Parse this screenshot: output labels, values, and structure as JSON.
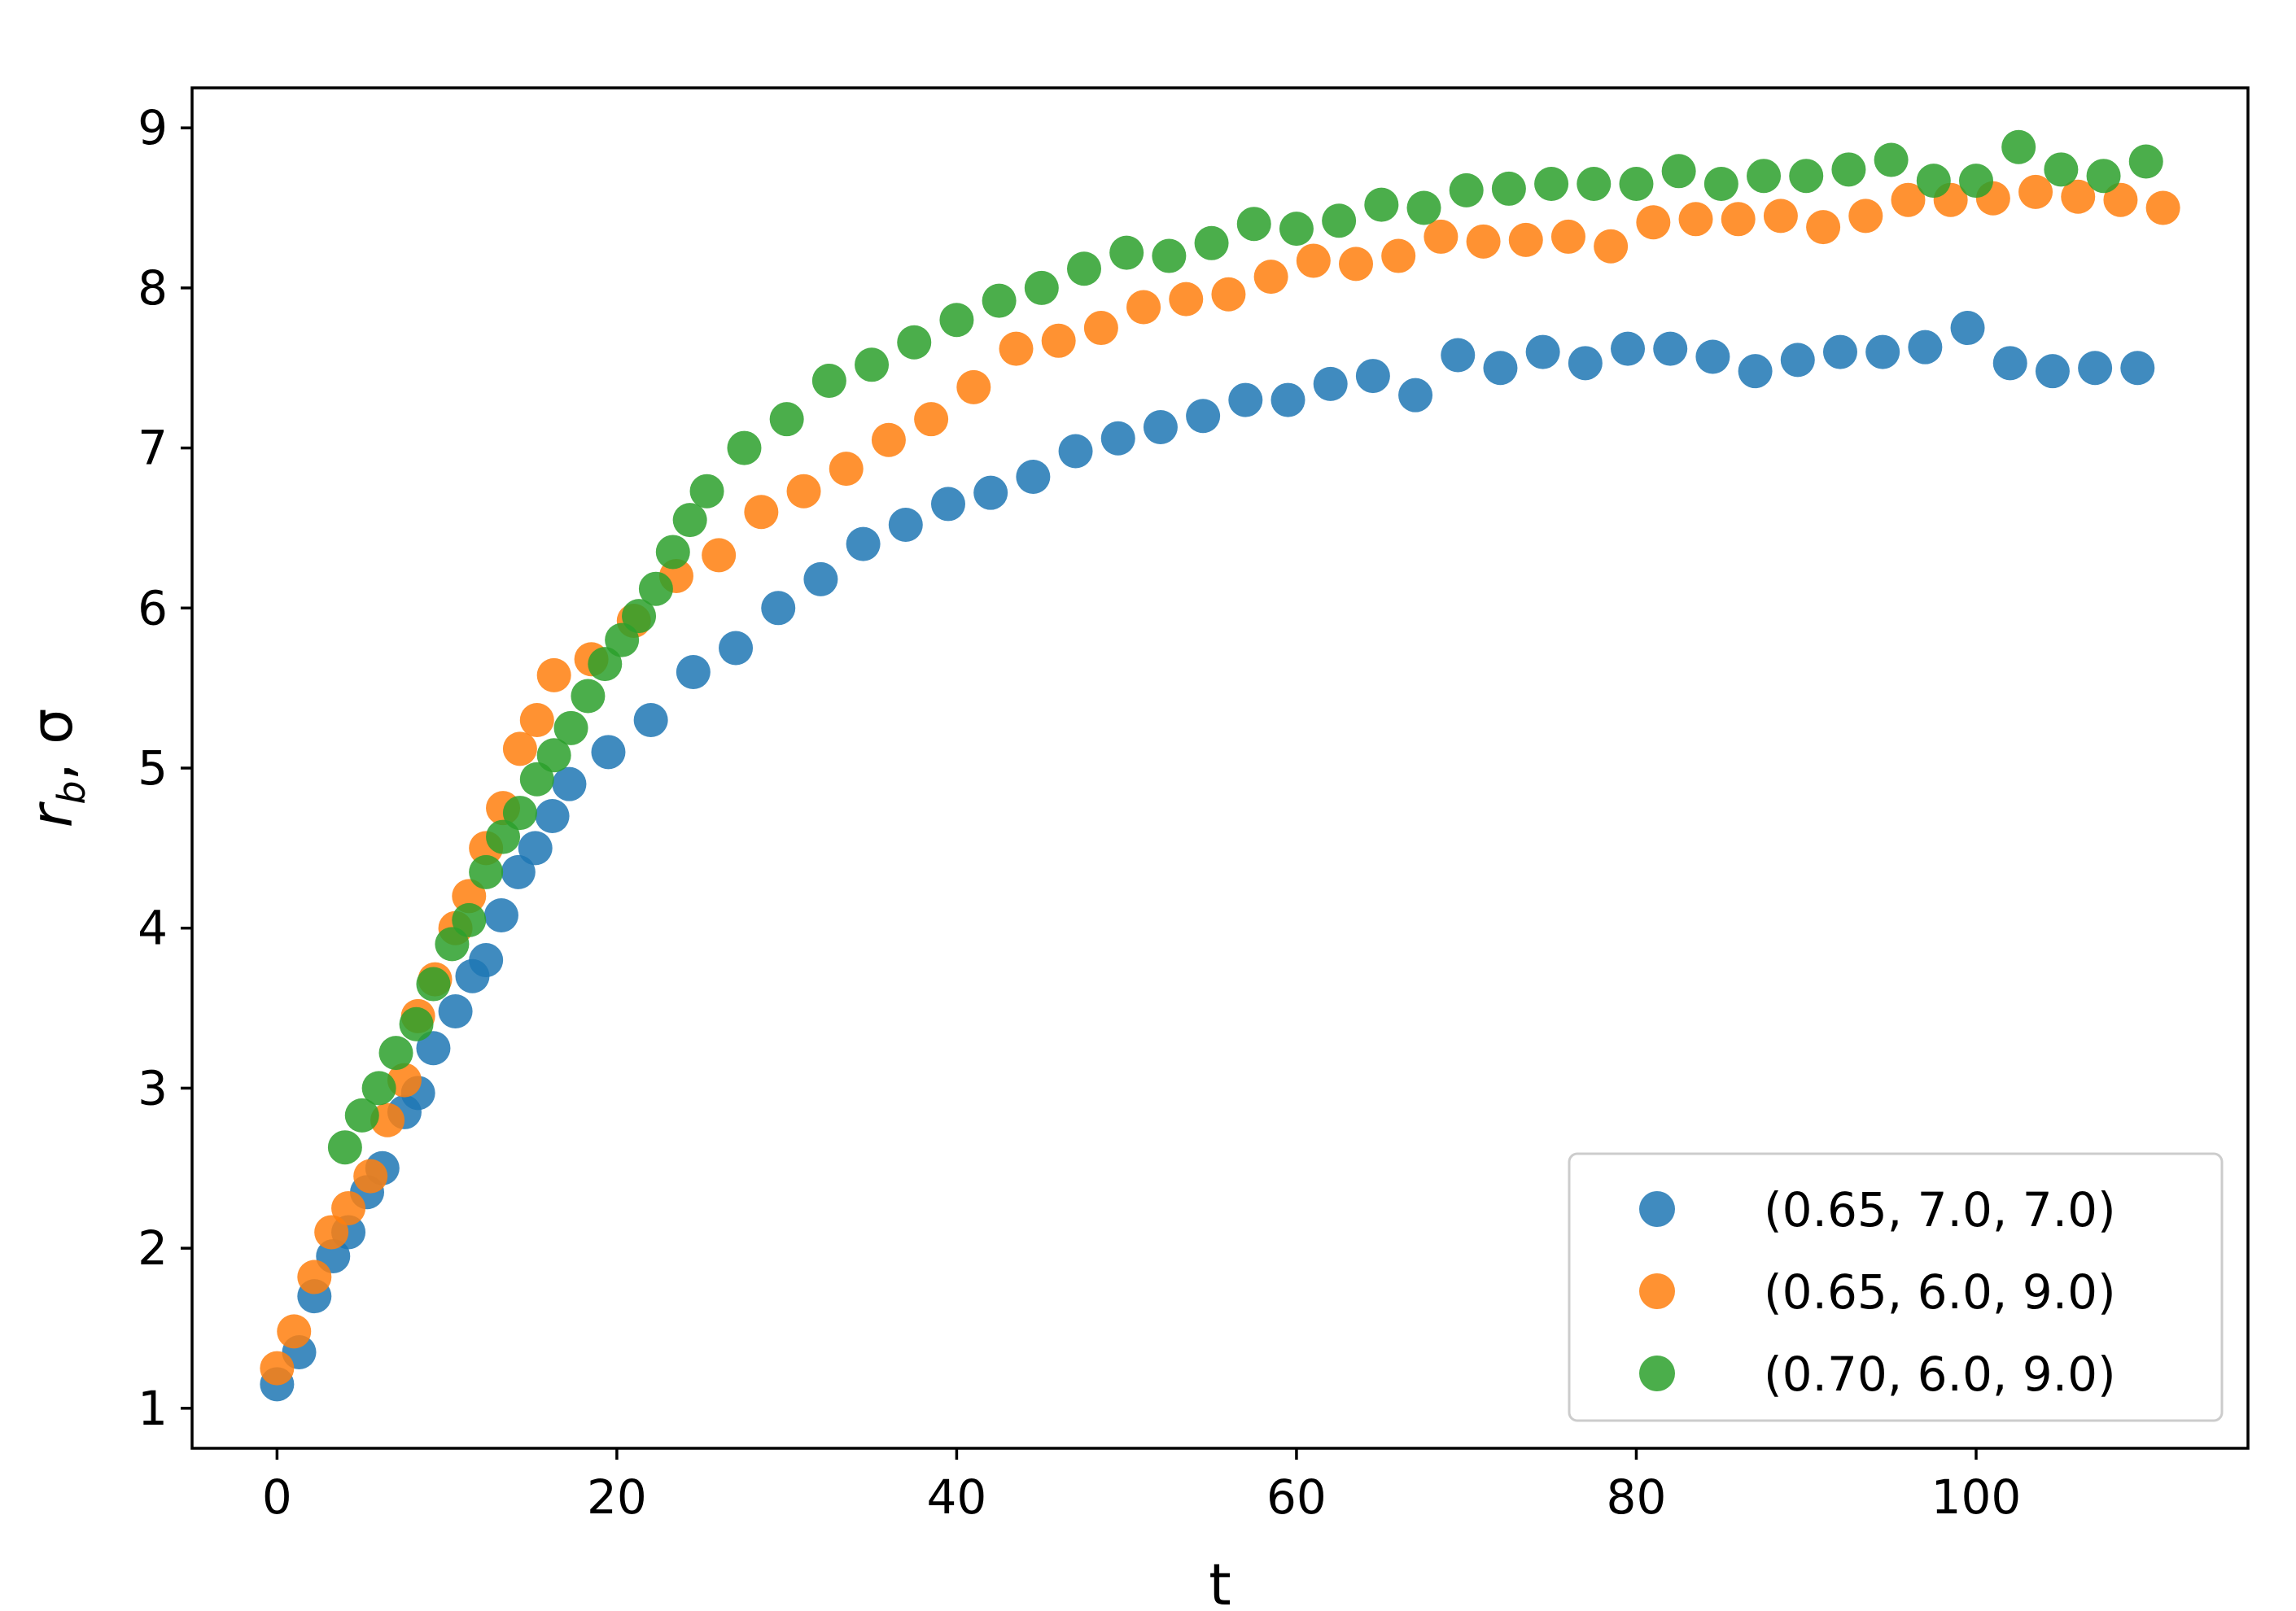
{
  "chart_data": {
    "type": "scatter",
    "title": "",
    "xlabel": "t",
    "ylabel": "r_b, σ",
    "ylabel_parts": {
      "r": "r",
      "sub": "b",
      "rest": ", σ"
    },
    "xlim": [
      -5,
      116
    ],
    "ylim": [
      0.75,
      9.25
    ],
    "xticks": [
      0,
      20,
      40,
      60,
      80,
      100
    ],
    "yticks": [
      1,
      2,
      3,
      4,
      5,
      6,
      7,
      8,
      9
    ],
    "grid": false,
    "legend_position": "lower-right",
    "series": [
      {
        "name": "(0.65, 7.0, 7.0)",
        "color": "#1f77b4",
        "x": [
          0,
          1.3,
          2.2,
          3.3,
          4.2,
          5.3,
          6.2,
          7.5,
          8.3,
          9.2,
          10.5,
          11.5,
          12.3,
          13.2,
          14.2,
          15.2,
          16.2,
          17.2,
          19.5,
          22,
          24.5,
          27,
          29.5,
          32,
          34.5,
          37,
          39.5,
          42,
          44.5,
          47,
          49.5,
          52,
          54.5,
          57,
          59.5,
          62,
          64.5,
          67,
          69.5,
          72,
          74.5,
          77,
          79.5,
          82,
          84.5,
          87,
          89.5,
          92,
          94.5,
          97,
          99.5,
          102,
          104.5,
          107,
          109.5
        ],
        "y": [
          1.15,
          1.35,
          1.7,
          1.95,
          2.1,
          2.35,
          2.5,
          2.85,
          2.97,
          3.25,
          3.48,
          3.7,
          3.8,
          4.08,
          4.35,
          4.5,
          4.7,
          4.9,
          5.1,
          5.3,
          5.6,
          5.75,
          6.0,
          6.18,
          6.4,
          6.52,
          6.65,
          6.72,
          6.82,
          6.98,
          7.06,
          7.13,
          7.2,
          7.3,
          7.3,
          7.4,
          7.45,
          7.33,
          7.58,
          7.5,
          7.6,
          7.53,
          7.62,
          7.62,
          7.57,
          7.48,
          7.55,
          7.6,
          7.6,
          7.63,
          7.75,
          7.53,
          7.48,
          7.5,
          7.5
        ]
      },
      {
        "name": "(0.65, 6.0, 9.0)",
        "color": "#ff7f0e",
        "x": [
          0,
          1.0,
          2.2,
          3.2,
          4.2,
          5.5,
          6.5,
          7.5,
          8.3,
          9.3,
          10.5,
          11.3,
          12.3,
          13.3,
          14.3,
          15.3,
          16.3,
          18.5,
          21,
          23.5,
          26,
          28.5,
          31,
          33.5,
          36,
          38.5,
          41,
          43.5,
          46,
          48.5,
          51,
          53.5,
          56,
          58.5,
          61,
          63.5,
          66,
          68.5,
          71,
          73.5,
          76,
          78.5,
          81,
          83.5,
          86,
          88.5,
          91,
          93.5,
          96,
          98.5,
          101,
          103.5,
          106,
          108.5,
          111
        ],
        "y": [
          1.25,
          1.48,
          1.82,
          2.1,
          2.25,
          2.45,
          2.8,
          3.05,
          3.45,
          3.68,
          4.0,
          4.2,
          4.5,
          4.75,
          5.12,
          5.3,
          5.58,
          5.68,
          5.92,
          6.2,
          6.33,
          6.6,
          6.73,
          6.87,
          7.05,
          7.18,
          7.38,
          7.62,
          7.67,
          7.75,
          7.88,
          7.93,
          7.96,
          8.07,
          8.17,
          8.15,
          8.2,
          8.32,
          8.29,
          8.3,
          8.32,
          8.26,
          8.41,
          8.43,
          8.43,
          8.45,
          8.38,
          8.45,
          8.55,
          8.55,
          8.56,
          8.6,
          8.57,
          8.55,
          8.5
        ]
      },
      {
        "name": "(0.70, 6.0, 9.0)",
        "color": "#2ca02c",
        "x": [
          4.0,
          5.0,
          6.0,
          7.0,
          8.2,
          9.2,
          10.3,
          11.3,
          12.3,
          13.3,
          14.3,
          15.3,
          16.3,
          17.3,
          18.3,
          19.3,
          20.3,
          21.3,
          22.3,
          23.3,
          24.3,
          25.3,
          27.5,
          30,
          32.5,
          35,
          37.5,
          40,
          42.5,
          45,
          47.5,
          50,
          52.5,
          55,
          57.5,
          60,
          62.5,
          65,
          67.5,
          70,
          72.5,
          75,
          77.5,
          80,
          82.5,
          85,
          87.5,
          90,
          92.5,
          95,
          97.5,
          100,
          102.5,
          105,
          107.5,
          110
        ],
        "y": [
          2.63,
          2.83,
          3.0,
          3.22,
          3.4,
          3.65,
          3.9,
          4.05,
          4.35,
          4.57,
          4.72,
          4.93,
          5.08,
          5.25,
          5.45,
          5.65,
          5.8,
          5.95,
          6.12,
          6.35,
          6.55,
          6.73,
          7.0,
          7.18,
          7.42,
          7.52,
          7.66,
          7.8,
          7.92,
          8.0,
          8.12,
          8.22,
          8.2,
          8.28,
          8.4,
          8.37,
          8.42,
          8.52,
          8.5,
          8.61,
          8.62,
          8.65,
          8.65,
          8.65,
          8.73,
          8.65,
          8.7,
          8.7,
          8.74,
          8.8,
          8.67,
          8.67,
          8.88,
          8.74,
          8.7,
          8.79
        ]
      }
    ]
  }
}
